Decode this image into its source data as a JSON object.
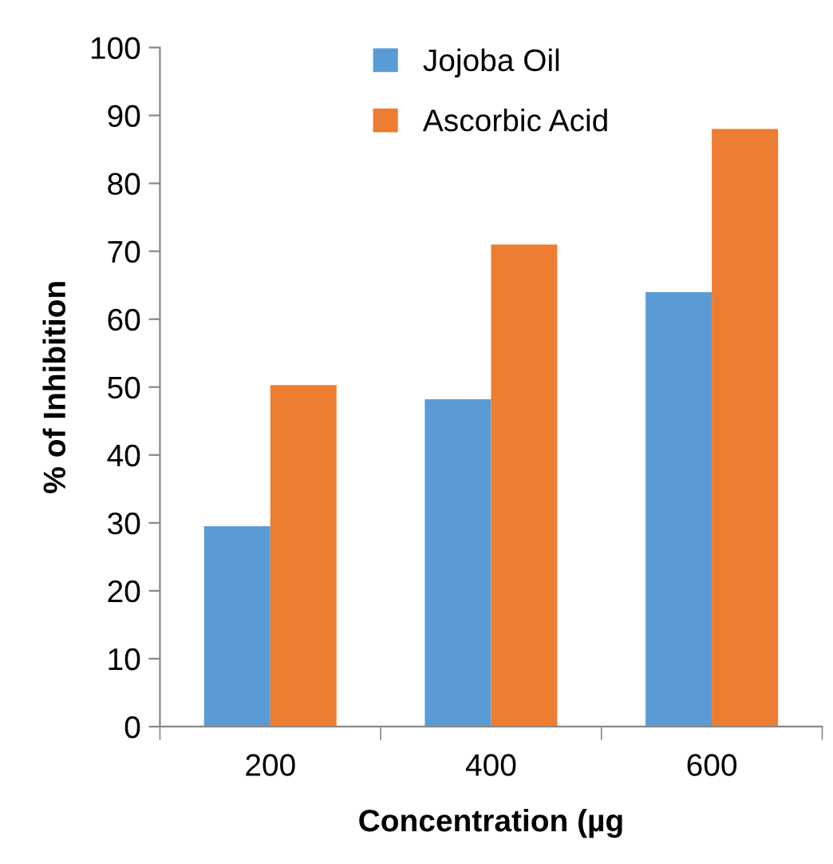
{
  "chart_data": {
    "type": "bar",
    "xlabel": "Concentration (µg",
    "ylabel": "% of Inhibition",
    "categories": [
      "200",
      "400",
      "600"
    ],
    "series": [
      {
        "name": "Jojoba Oil",
        "color": "#5b9bd5",
        "values": [
          29.5,
          48.2,
          64
        ]
      },
      {
        "name": "Ascorbic Acid",
        "color": "#ed7d31",
        "values": [
          50.3,
          71,
          88
        ]
      }
    ],
    "ylim": [
      0,
      100
    ],
    "yticks": [
      0,
      10,
      20,
      30,
      40,
      50,
      60,
      70,
      80,
      90,
      100
    ],
    "grid": false,
    "legend": "top"
  }
}
